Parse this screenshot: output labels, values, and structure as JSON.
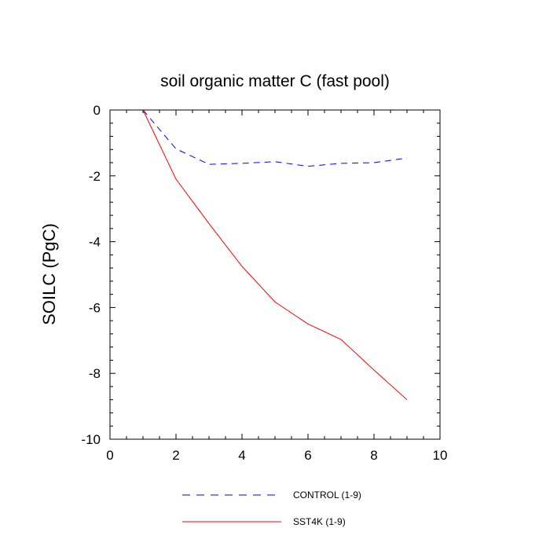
{
  "chart_data": {
    "type": "line",
    "title": "soil organic matter C (fast pool)",
    "xlabel": "",
    "ylabel": "SOILC  (PgC)",
    "xlim": [
      0,
      10
    ],
    "ylim": [
      -10,
      0
    ],
    "xticks": [
      0,
      2,
      4,
      6,
      8,
      10
    ],
    "yticks": [
      0,
      -2,
      -4,
      -6,
      -8,
      -10
    ],
    "xtick_labels": [
      "0",
      "2",
      "4",
      "6",
      "8",
      "10"
    ],
    "ytick_labels": [
      "0",
      "-2",
      "-4",
      "-6",
      "-8",
      "-10"
    ],
    "legend_position": "bottom",
    "series": [
      {
        "name": "CONTROL (1-9)",
        "color": "#0000ff",
        "style": "dashed",
        "x": [
          1,
          2,
          3,
          4,
          5,
          6,
          7,
          8,
          9
        ],
        "y": [
          0,
          -1.18,
          -1.65,
          -1.62,
          -1.57,
          -1.71,
          -1.62,
          -1.6,
          -1.46
        ]
      },
      {
        "name": "SST4K (1-9)",
        "color": "#ff0000",
        "style": "solid",
        "x": [
          1,
          2,
          3,
          4,
          5,
          6,
          7,
          8,
          9
        ],
        "y": [
          0,
          -2.1,
          -3.45,
          -4.75,
          -5.83,
          -6.5,
          -6.97,
          -7.9,
          -8.8
        ]
      }
    ]
  }
}
